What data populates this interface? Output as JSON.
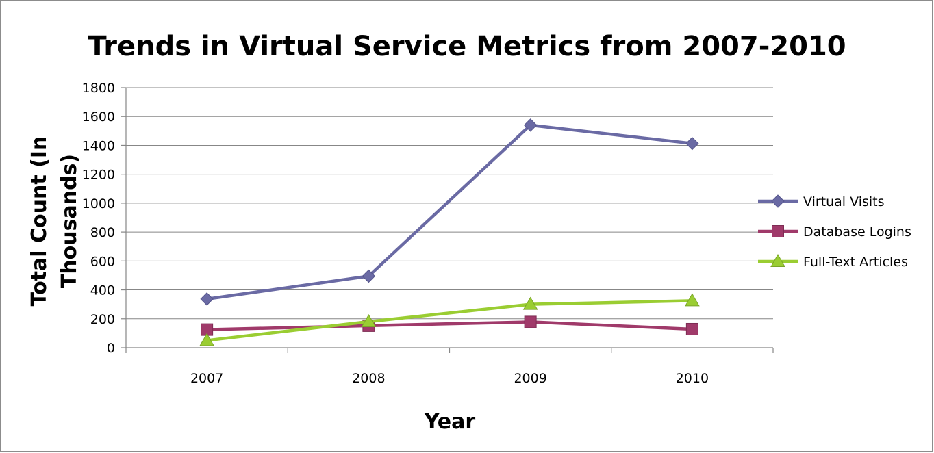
{
  "chart_data": {
    "type": "line",
    "title": "Trends in Virtual Service Metrics from 2007-2010",
    "xlabel": "Year",
    "ylabel": "Total Count (In Thousands)",
    "ylabel_lines": [
      "Total Count (In",
      "Thousands)"
    ],
    "categories": [
      "2007",
      "2008",
      "2009",
      "2010"
    ],
    "ylim": [
      0,
      1800
    ],
    "yticks": [
      "0",
      "200",
      "400",
      "600",
      "800",
      "1000",
      "1200",
      "1400",
      "1600",
      "1800"
    ],
    "grid": true,
    "legend_position": "right",
    "series": [
      {
        "name": "Virtual Visits",
        "values": [
          337,
          495,
          1540,
          1413
        ],
        "color": "#6a6aa4",
        "marker": "diamond"
      },
      {
        "name": "Database Logins",
        "values": [
          125,
          152,
          178,
          128
        ],
        "color": "#a03a6a",
        "marker": "square"
      },
      {
        "name": "Full-Text Articles",
        "values": [
          50,
          180,
          300,
          325
        ],
        "color": "#9acd32",
        "marker": "triangle"
      }
    ]
  }
}
